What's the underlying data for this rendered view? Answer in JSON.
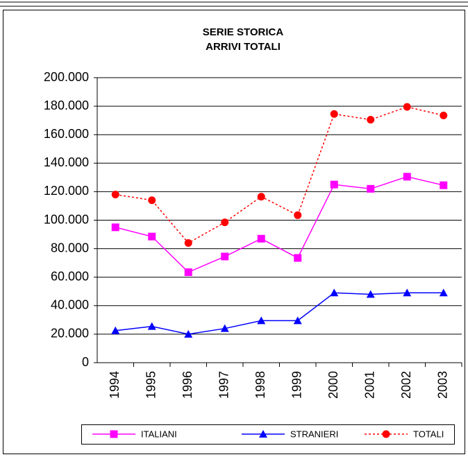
{
  "chart_data": {
    "type": "line",
    "title": [
      "SERIE STORICA",
      "ARRIVI TOTALI"
    ],
    "categories": [
      "1994",
      "1995",
      "1996",
      "1997",
      "1998",
      "1999",
      "2000",
      "2001",
      "2002",
      "2003"
    ],
    "series": [
      {
        "name": "ITALIANI",
        "color": "#ff00ff",
        "marker": "square",
        "dash": false,
        "values": [
          95000,
          88500,
          63500,
          74500,
          87000,
          73500,
          125000,
          122000,
          130500,
          124500
        ]
      },
      {
        "name": "STRANIERI",
        "color": "#0000ff",
        "marker": "triangle",
        "dash": false,
        "values": [
          22500,
          25500,
          20000,
          24000,
          29500,
          29500,
          49000,
          48000,
          49000,
          49000
        ]
      },
      {
        "name": "TOTALI",
        "color": "#ff0000",
        "marker": "circle",
        "dash": true,
        "values": [
          118000,
          114000,
          84000,
          98500,
          116500,
          103500,
          174500,
          170500,
          179500,
          173500
        ]
      }
    ],
    "ylim": [
      0,
      200000
    ],
    "yticks": [
      0,
      {
        "value": 20000,
        "label": "20.000"
      },
      {
        "value": 40000,
        "label": "40.000"
      },
      {
        "value": 60000,
        "label": "60.000"
      },
      {
        "value": 80000,
        "label": "80.000"
      },
      {
        "value": 100000,
        "label": "100.000"
      },
      {
        "value": 120000,
        "label": "120.000"
      },
      {
        "value": 140000,
        "label": "140.000"
      },
      {
        "value": 160000,
        "label": "160.000"
      },
      {
        "value": 180000,
        "label": "180.000"
      },
      {
        "value": 200000,
        "label": "200.000"
      }
    ],
    "grid": true,
    "legend": "bottom"
  }
}
